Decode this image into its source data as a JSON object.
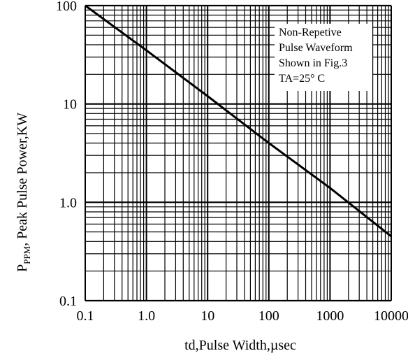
{
  "chart_data": {
    "type": "line",
    "title": "",
    "xlabel": "td,Pulse Width,µsec",
    "ylabel": {
      "main": "P",
      "subscript": "PPM",
      "rest": ", Peak Pulse Power,KW"
    },
    "x_scale": "log",
    "y_scale": "log",
    "xlim": [
      0.1,
      10000
    ],
    "ylim": [
      0.1,
      100
    ],
    "x_ticks": [
      {
        "value": 0.1,
        "label": "0.1"
      },
      {
        "value": 1,
        "label": "1.0"
      },
      {
        "value": 10,
        "label": "10"
      },
      {
        "value": 100,
        "label": "100"
      },
      {
        "value": 1000,
        "label": "1000"
      },
      {
        "value": 10000,
        "label": "10000"
      }
    ],
    "y_ticks": [
      {
        "value": 0.1,
        "label": "0.1"
      },
      {
        "value": 1,
        "label": "1.0"
      },
      {
        "value": 10,
        "label": "10"
      },
      {
        "value": 100,
        "label": "100"
      }
    ],
    "grid": true,
    "series": [
      {
        "x": [
          0.1,
          1,
          10,
          100,
          1000,
          10000
        ],
        "y": [
          100,
          35,
          12,
          4,
          1.4,
          0.45
        ]
      }
    ],
    "annotation": {
      "lines": [
        "Non-Repetive",
        "Pulse Waveform",
        "Shown in Fig.3",
        "TA=25° C"
      ],
      "position": "top-right"
    }
  }
}
